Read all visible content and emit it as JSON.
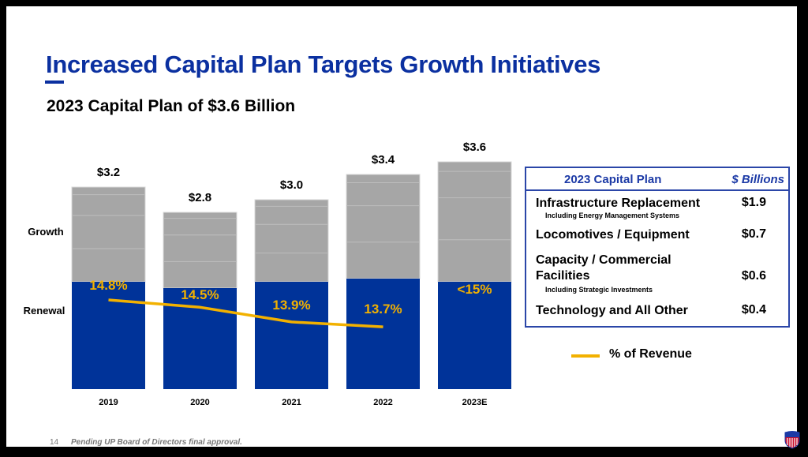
{
  "slide": {
    "title": "Increased Capital Plan Targets Growth Initiatives",
    "subtitle": "2023 Capital Plan of $3.6 Billion",
    "page_number": "14",
    "footnote": "Pending UP Board of Directors final approval.",
    "logo_icon": "union-pacific-shield-logo",
    "colors": {
      "brand_blue": "#0b30a0",
      "renewal_blue": "#003399",
      "growth_gray": "#a6a6a6",
      "revenue_line": "#f2b100"
    }
  },
  "chart_data": {
    "type": "bar",
    "stacked": true,
    "title": "2023 Capital Plan of $3.6 Billion",
    "xlabel": "",
    "ylabel": "",
    "categories": [
      "2019",
      "2020",
      "2021",
      "2022",
      "2023E"
    ],
    "totals_labels": [
      "$3.2",
      "$2.8",
      "$3.0",
      "$3.4",
      "$3.6"
    ],
    "totals": [
      3.2,
      2.8,
      3.0,
      3.4,
      3.6
    ],
    "series": [
      {
        "name": "Renewal",
        "values": [
          1.7,
          1.6,
          1.7,
          1.75,
          1.7
        ]
      },
      {
        "name": "Growth",
        "values": [
          1.5,
          1.2,
          1.3,
          1.65,
          1.9
        ]
      }
    ],
    "segment_labels": [
      "Growth",
      "Renewal"
    ],
    "line_series": {
      "name": "% of Revenue",
      "labels": [
        "14.8%",
        "14.5%",
        "13.9%",
        "13.7%",
        "<15%"
      ],
      "values": [
        14.8,
        14.5,
        13.9,
        13.7,
        null
      ]
    },
    "ylim": [
      0,
      3.6
    ],
    "grid": false,
    "legend": "bottom-right"
  },
  "plan_table": {
    "header_left": "2023 Capital Plan",
    "header_right": "$ Billions",
    "rows": [
      {
        "label": "Infrastructure Replacement",
        "note": "Including Energy Management Systems",
        "value": "$1.9"
      },
      {
        "label": "Locomotives / Equipment",
        "note": "",
        "value": "$0.7"
      },
      {
        "label": "Capacity / Commercial Facilities",
        "note": "Including Strategic Investments",
        "value": "$0.6"
      },
      {
        "label": "Technology and All Other",
        "note": "",
        "value": "$0.4"
      }
    ]
  },
  "legend": {
    "label": "% of Revenue"
  }
}
